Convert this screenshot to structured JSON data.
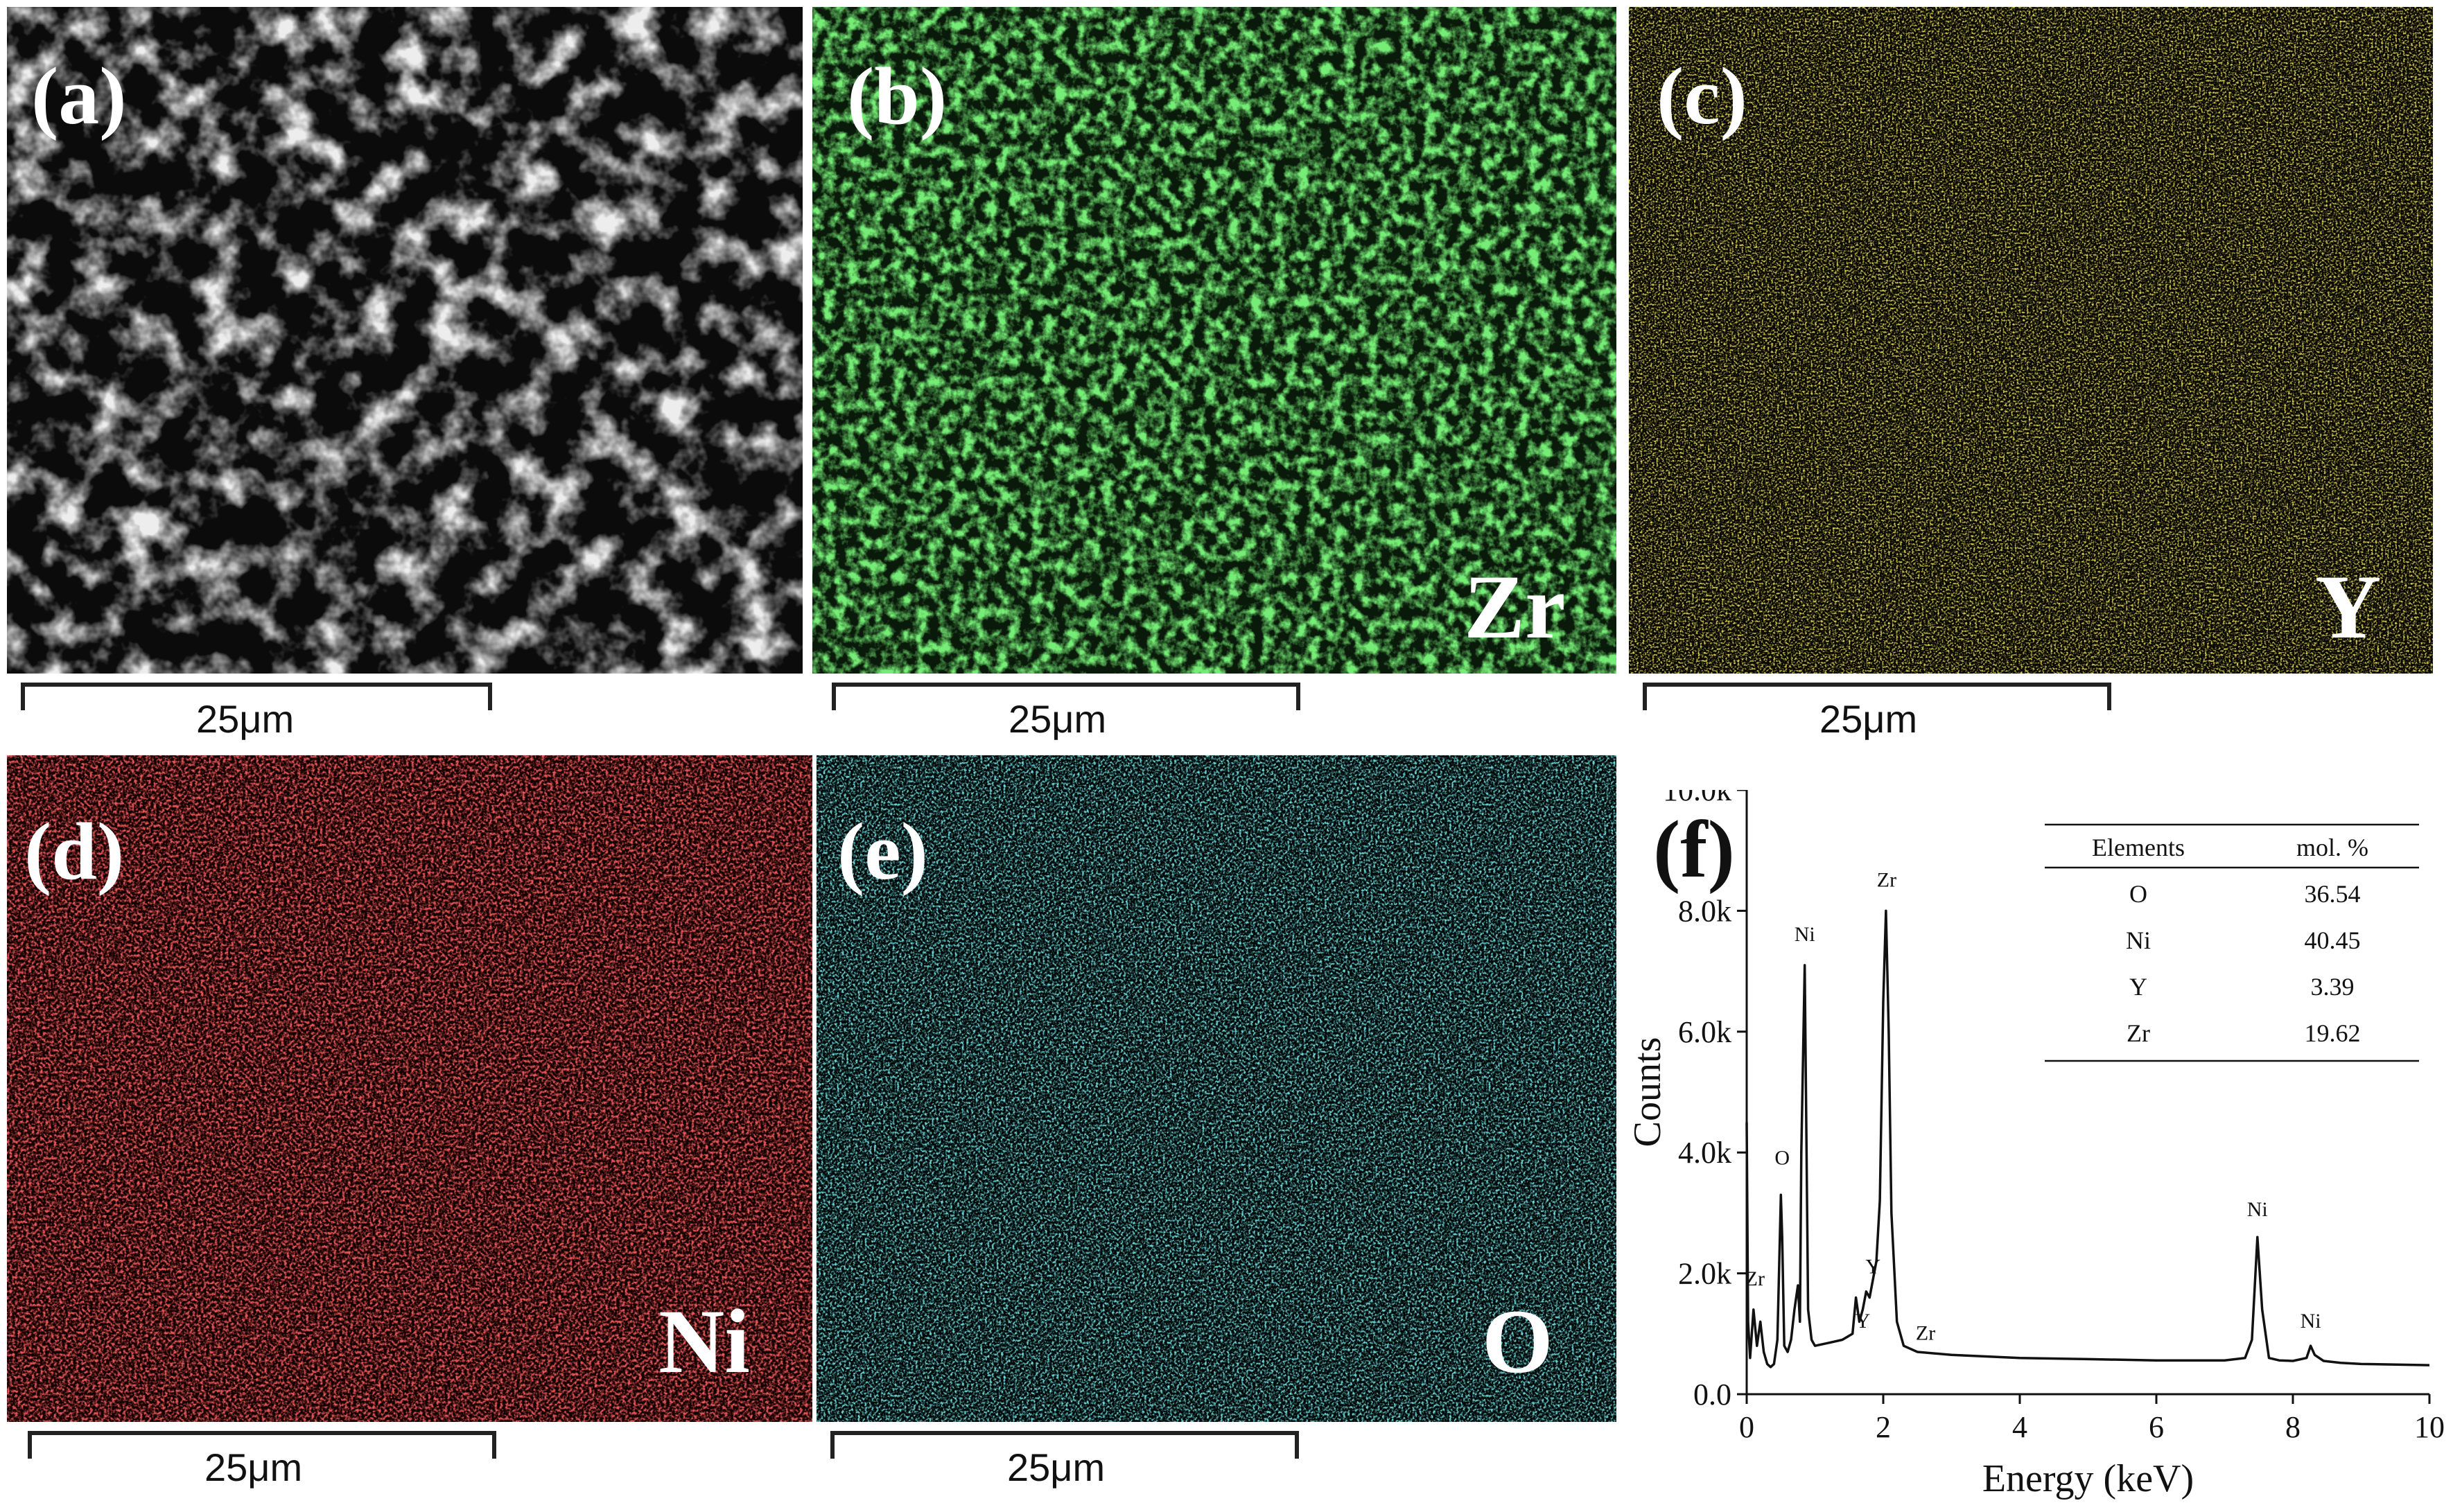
{
  "colors": {
    "sem": "#cfcfcf",
    "zr": "#2fd82f",
    "y": "#b8a51c",
    "ni": "#d41a1a",
    "o": "#2bb8bd"
  },
  "panels": [
    {
      "label": "(a)",
      "element": "",
      "scale": "25μm",
      "color": "#cfcfcf"
    },
    {
      "label": "(b)",
      "element": "Zr",
      "scale": "25μm",
      "color": "#2fd82f"
    },
    {
      "label": "(c)",
      "element": "Y",
      "scale": "25μm",
      "color": "#b8a51c"
    },
    {
      "label": "(d)",
      "element": "Ni",
      "scale": "25μm",
      "color": "#d41a1a"
    },
    {
      "label": "(e)",
      "element": "O",
      "scale": "25μm",
      "color": "#2bb8bd"
    }
  ],
  "chart_label": "(f)",
  "chart_data": {
    "type": "line",
    "xlabel": "Energy (keV)",
    "ylabel": "Counts",
    "xlim": [
      0,
      10
    ],
    "ylim": [
      0,
      10000
    ],
    "xticks": [
      "0",
      "2",
      "4",
      "6",
      "8",
      "10"
    ],
    "yticks": [
      "0.0",
      "2.0k",
      "4.0k",
      "6.0k",
      "8.0k",
      "10.0k"
    ],
    "series": [
      {
        "x": [
          0.0,
          0.02,
          0.05,
          0.1,
          0.15,
          0.2,
          0.25,
          0.3,
          0.35,
          0.4,
          0.45,
          0.5,
          0.52,
          0.55,
          0.6,
          0.65,
          0.7,
          0.75,
          0.78,
          0.8,
          0.85,
          0.9,
          0.95,
          1.0,
          1.2,
          1.4,
          1.55,
          1.6,
          1.65,
          1.7,
          1.75,
          1.8,
          1.85,
          1.9,
          1.95,
          2.0,
          2.04,
          2.08,
          2.12,
          2.2,
          2.3,
          2.5,
          3.0,
          4.0,
          5.0,
          6.0,
          7.0,
          7.3,
          7.4,
          7.48,
          7.55,
          7.65,
          7.8,
          8.0,
          8.2,
          8.26,
          8.32,
          8.45,
          8.7,
          9.0,
          10.0
        ],
        "y": [
          4500,
          1200,
          600,
          1400,
          800,
          1200,
          700,
          500,
          450,
          500,
          900,
          3300,
          2600,
          800,
          700,
          900,
          1400,
          1800,
          1200,
          4000,
          7100,
          1400,
          900,
          800,
          850,
          900,
          1000,
          1600,
          1200,
          1400,
          1700,
          1600,
          1900,
          2200,
          3200,
          6500,
          8000,
          6000,
          3000,
          1200,
          800,
          700,
          650,
          600,
          580,
          560,
          560,
          600,
          900,
          2600,
          1400,
          600,
          560,
          550,
          600,
          800,
          650,
          550,
          520,
          500,
          480
        ]
      }
    ],
    "annotations": [
      {
        "text": "Zr",
        "x": 0.12,
        "y": 1800
      },
      {
        "text": "O",
        "x": 0.52,
        "y": 3800
      },
      {
        "text": "Ni",
        "x": 0.85,
        "y": 7500
      },
      {
        "text": "Y",
        "x": 1.7,
        "y": 1100
      },
      {
        "text": "Y",
        "x": 1.85,
        "y": 2000
      },
      {
        "text": "Zr",
        "x": 2.05,
        "y": 8400
      },
      {
        "text": "Zr",
        "x": 2.62,
        "y": 900
      },
      {
        "text": "Ni",
        "x": 7.48,
        "y": 2950
      },
      {
        "text": "Ni",
        "x": 8.26,
        "y": 1100
      }
    ],
    "table": {
      "headers": [
        "Elements",
        "mol. %"
      ],
      "rows": [
        [
          "O",
          "36.54"
        ],
        [
          "Ni",
          "40.45"
        ],
        [
          "Y",
          "3.39"
        ],
        [
          "Zr",
          "19.62"
        ]
      ]
    }
  }
}
